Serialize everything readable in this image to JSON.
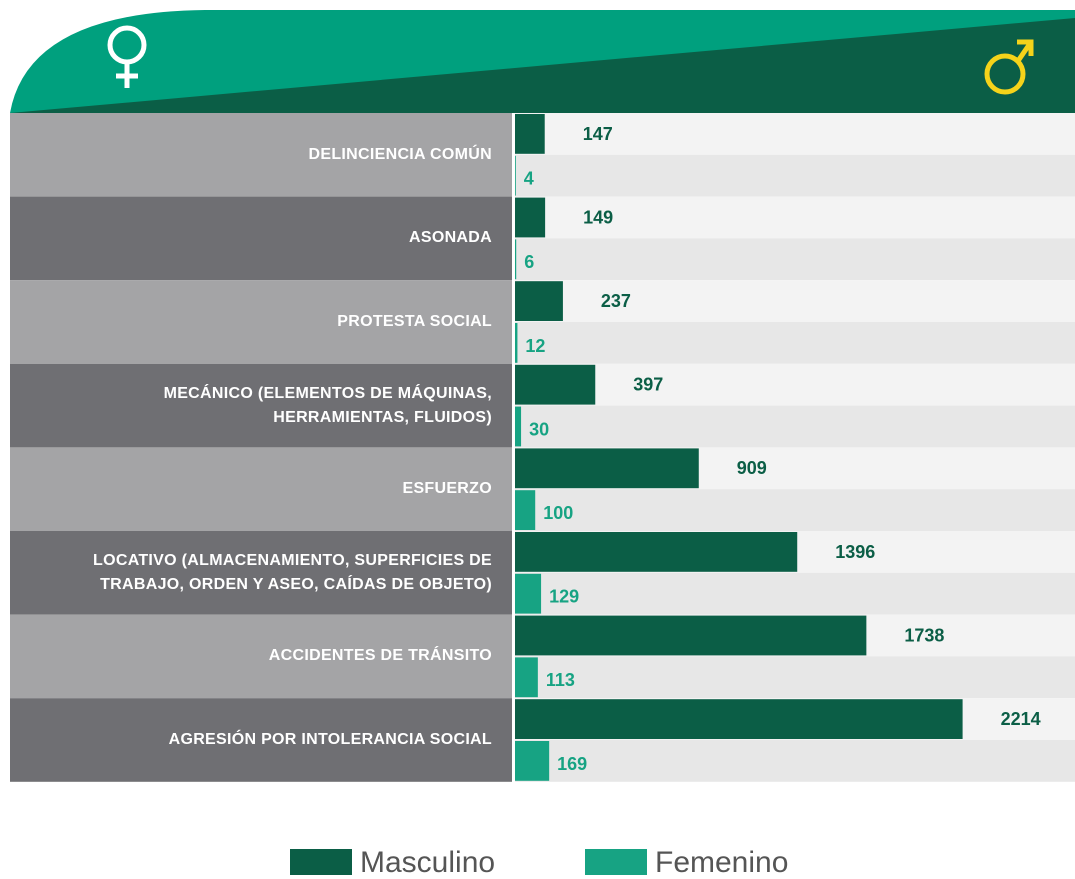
{
  "chart_data": {
    "type": "hbar",
    "categories": [
      "DELINCIENCIA COMÚN",
      "ASONADA",
      "PROTESTA SOCIAL",
      "MECÁNICO (ELEMENTOS DE MÁQUINAS,\nHERRAMIENTAS, FLUIDOS)",
      "ESFUERZO",
      "LOCATIVO (ALMACENAMIENTO, SUPERFICIES DE\nTRABAJO, ORDEN Y ASEO, CAÍDAS DE OBJETO)",
      "ACCIDENTES DE TRÁNSITO",
      "AGRESIÓN POR INTOLERANCIA SOCIAL"
    ],
    "series": [
      {
        "name": "Masculino",
        "color": "#0b5e46",
        "values": [
          147,
          149,
          237,
          397,
          909,
          1396,
          1738,
          2214
        ]
      },
      {
        "name": "Femenino",
        "color": "#17a383",
        "values": [
          4,
          6,
          12,
          30,
          100,
          129,
          113,
          169
        ]
      }
    ],
    "xlim": [
      0,
      2770
    ]
  }
}
